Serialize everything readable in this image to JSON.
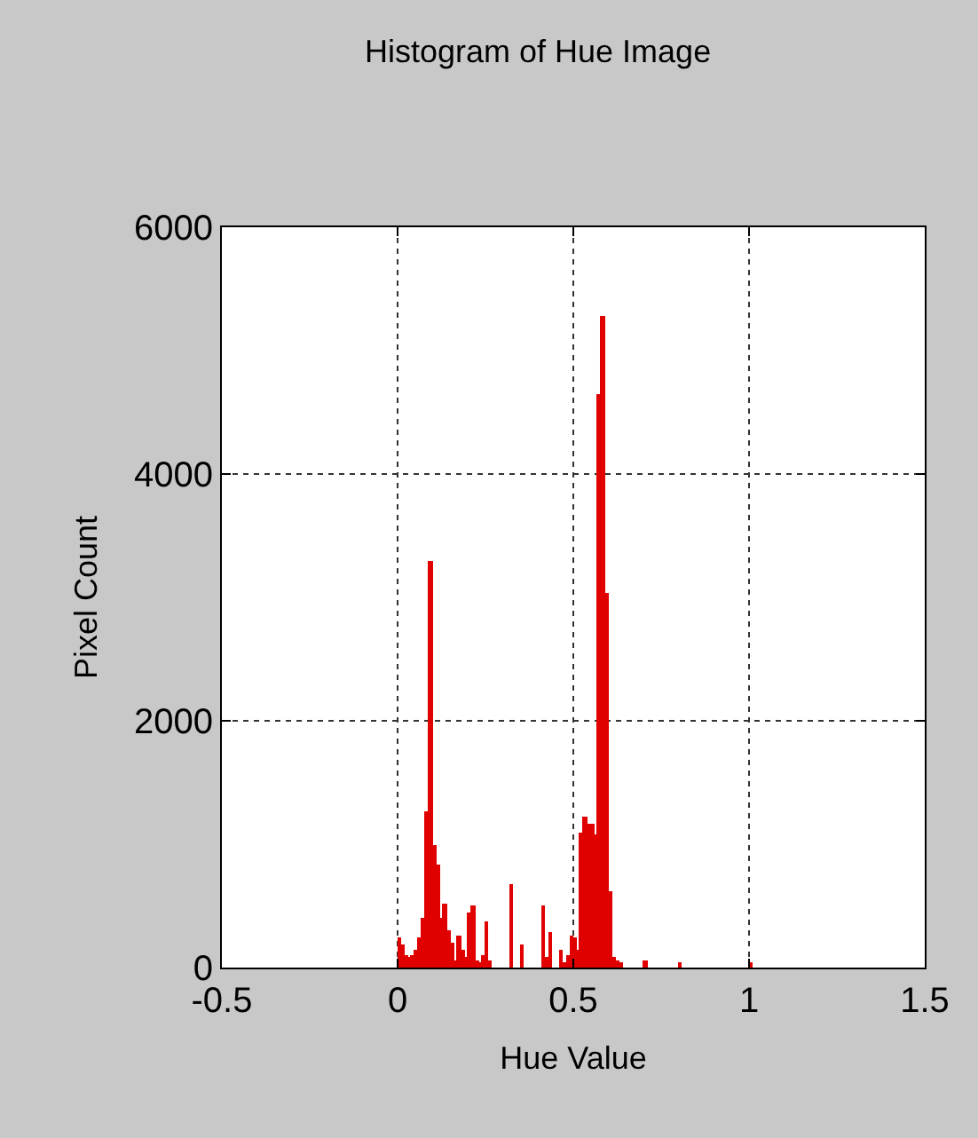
{
  "chart_data": {
    "type": "histogram",
    "title": "Histogram of Hue Image",
    "xlabel": "Hue Value",
    "ylabel": "Pixel Count",
    "bins": [
      0,
      0.01,
      0.02,
      0.03,
      0.04,
      0.05,
      0.06,
      0.07,
      0.08,
      0.09,
      0.1,
      0.11,
      0.12,
      0.13,
      0.14,
      0.15,
      0.16,
      0.17,
      0.18,
      0.19,
      0.2,
      0.21,
      0.22,
      0.23,
      0.24,
      0.25,
      0.26,
      0.27,
      0.32,
      0.33,
      0.35,
      0.36,
      0.41,
      0.42,
      0.43,
      0.44,
      0.46,
      0.47,
      0.48,
      0.49,
      0.5,
      0.51,
      0.52,
      0.53,
      0.54,
      0.55,
      0.56,
      0.57,
      0.58,
      0.59,
      0.6,
      0.61,
      0.62,
      0.63,
      0.64,
      0.7,
      0.71,
      0.8,
      0.81,
      1.0,
      1.01
    ],
    "values": [
      240,
      180,
      100,
      80,
      100,
      150,
      250,
      400,
      1270,
      3290,
      1000,
      830,
      400,
      520,
      300,
      200,
      60,
      260,
      150,
      80,
      440,
      500,
      60,
      40,
      100,
      370,
      60,
      0,
      680,
      0,
      180,
      0,
      500,
      80,
      290,
      0,
      150,
      40,
      100,
      260,
      240,
      150,
      1100,
      1230,
      1160,
      1160,
      1080,
      4650,
      5280,
      3030,
      620,
      90,
      60,
      40,
      0,
      60,
      0,
      40,
      0,
      40
    ],
    "color": "#e00000",
    "xlim": [
      -0.5,
      1.5
    ],
    "xticks": [
      -0.5,
      0,
      0.5,
      1,
      1.5
    ],
    "ylim": [
      0,
      6000
    ],
    "yticks": [
      0,
      2000,
      4000,
      6000
    ],
    "grid": true
  }
}
